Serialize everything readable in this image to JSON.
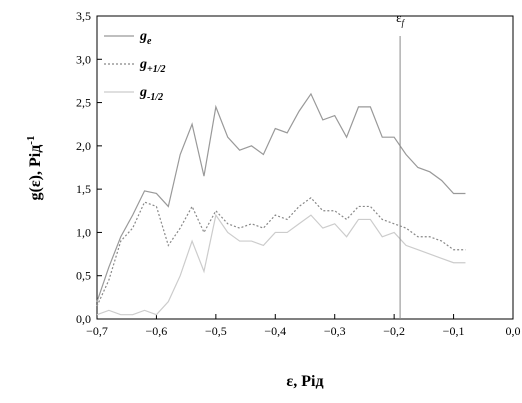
{
  "chart_data": {
    "type": "line",
    "xlabel": "ε, Рід",
    "ylabel": {
      "main": "g(ε),  Рід",
      "sup": "-1"
    },
    "x": [
      -0.7,
      -0.68,
      -0.66,
      -0.64,
      -0.62,
      -0.6,
      -0.58,
      -0.56,
      -0.54,
      -0.52,
      -0.5,
      -0.48,
      -0.46,
      -0.44,
      -0.42,
      -0.4,
      -0.38,
      -0.36,
      -0.34,
      -0.32,
      -0.3,
      -0.28,
      -0.26,
      -0.24,
      -0.22,
      -0.2,
      -0.18,
      -0.16,
      -0.14,
      -0.12,
      -0.1,
      -0.08
    ],
    "series": [
      {
        "name": "g",
        "name_sub": "e",
        "color": "#999999",
        "dash": "none",
        "values": [
          0.2,
          0.6,
          0.95,
          1.2,
          1.48,
          1.45,
          1.3,
          1.9,
          2.25,
          1.65,
          2.45,
          2.1,
          1.95,
          2.0,
          1.9,
          2.2,
          2.15,
          2.4,
          2.6,
          2.3,
          2.35,
          2.1,
          2.45,
          2.45,
          2.1,
          2.1,
          1.9,
          1.75,
          1.7,
          1.6,
          1.45,
          1.45
        ]
      },
      {
        "name": "g",
        "name_sub": "+1/2",
        "color": "#888888",
        "dash": "2 2",
        "values": [
          0.15,
          0.45,
          0.9,
          1.05,
          1.35,
          1.3,
          0.85,
          1.05,
          1.3,
          1.0,
          1.25,
          1.1,
          1.05,
          1.1,
          1.05,
          1.2,
          1.15,
          1.3,
          1.4,
          1.25,
          1.25,
          1.15,
          1.3,
          1.3,
          1.15,
          1.1,
          1.05,
          0.95,
          0.95,
          0.9,
          0.8,
          0.8
        ]
      },
      {
        "name": "g",
        "name_sub": "-1/2",
        "color": "#cccccc",
        "dash": "none",
        "values": [
          0.05,
          0.1,
          0.05,
          0.05,
          0.1,
          0.05,
          0.2,
          0.5,
          0.9,
          0.55,
          1.2,
          1.0,
          0.9,
          0.9,
          0.85,
          1.0,
          1.0,
          1.1,
          1.2,
          1.05,
          1.1,
          0.95,
          1.15,
          1.15,
          0.95,
          1.0,
          0.85,
          0.8,
          0.75,
          0.7,
          0.65,
          0.65
        ]
      }
    ],
    "annotation": {
      "text": "ε",
      "sub": "f",
      "x": -0.19
    },
    "xlim": [
      -0.7,
      0.0
    ],
    "xticks": [
      {
        "value": -0.7,
        "label": "−0,7"
      },
      {
        "value": -0.6,
        "label": "−0,6"
      },
      {
        "value": -0.5,
        "label": "−0,5"
      },
      {
        "value": -0.4,
        "label": "−0,4"
      },
      {
        "value": -0.3,
        "label": "−0,3"
      },
      {
        "value": -0.2,
        "label": "−0,2"
      },
      {
        "value": -0.1,
        "label": "−0,1"
      },
      {
        "value": 0.0,
        "label": "0,0"
      }
    ],
    "ylim": [
      0.0,
      3.5
    ],
    "yticks": [
      {
        "value": 0.0,
        "label": "0,0"
      },
      {
        "value": 0.5,
        "label": "0,5"
      },
      {
        "value": 1.0,
        "label": "1,0"
      },
      {
        "value": 1.5,
        "label": "1,5"
      },
      {
        "value": 2.0,
        "label": "2,0"
      },
      {
        "value": 2.5,
        "label": "2,5"
      },
      {
        "value": 3.0,
        "label": "3,0"
      },
      {
        "value": 3.5,
        "label": "3,5"
      }
    ],
    "legend": "upper left"
  }
}
